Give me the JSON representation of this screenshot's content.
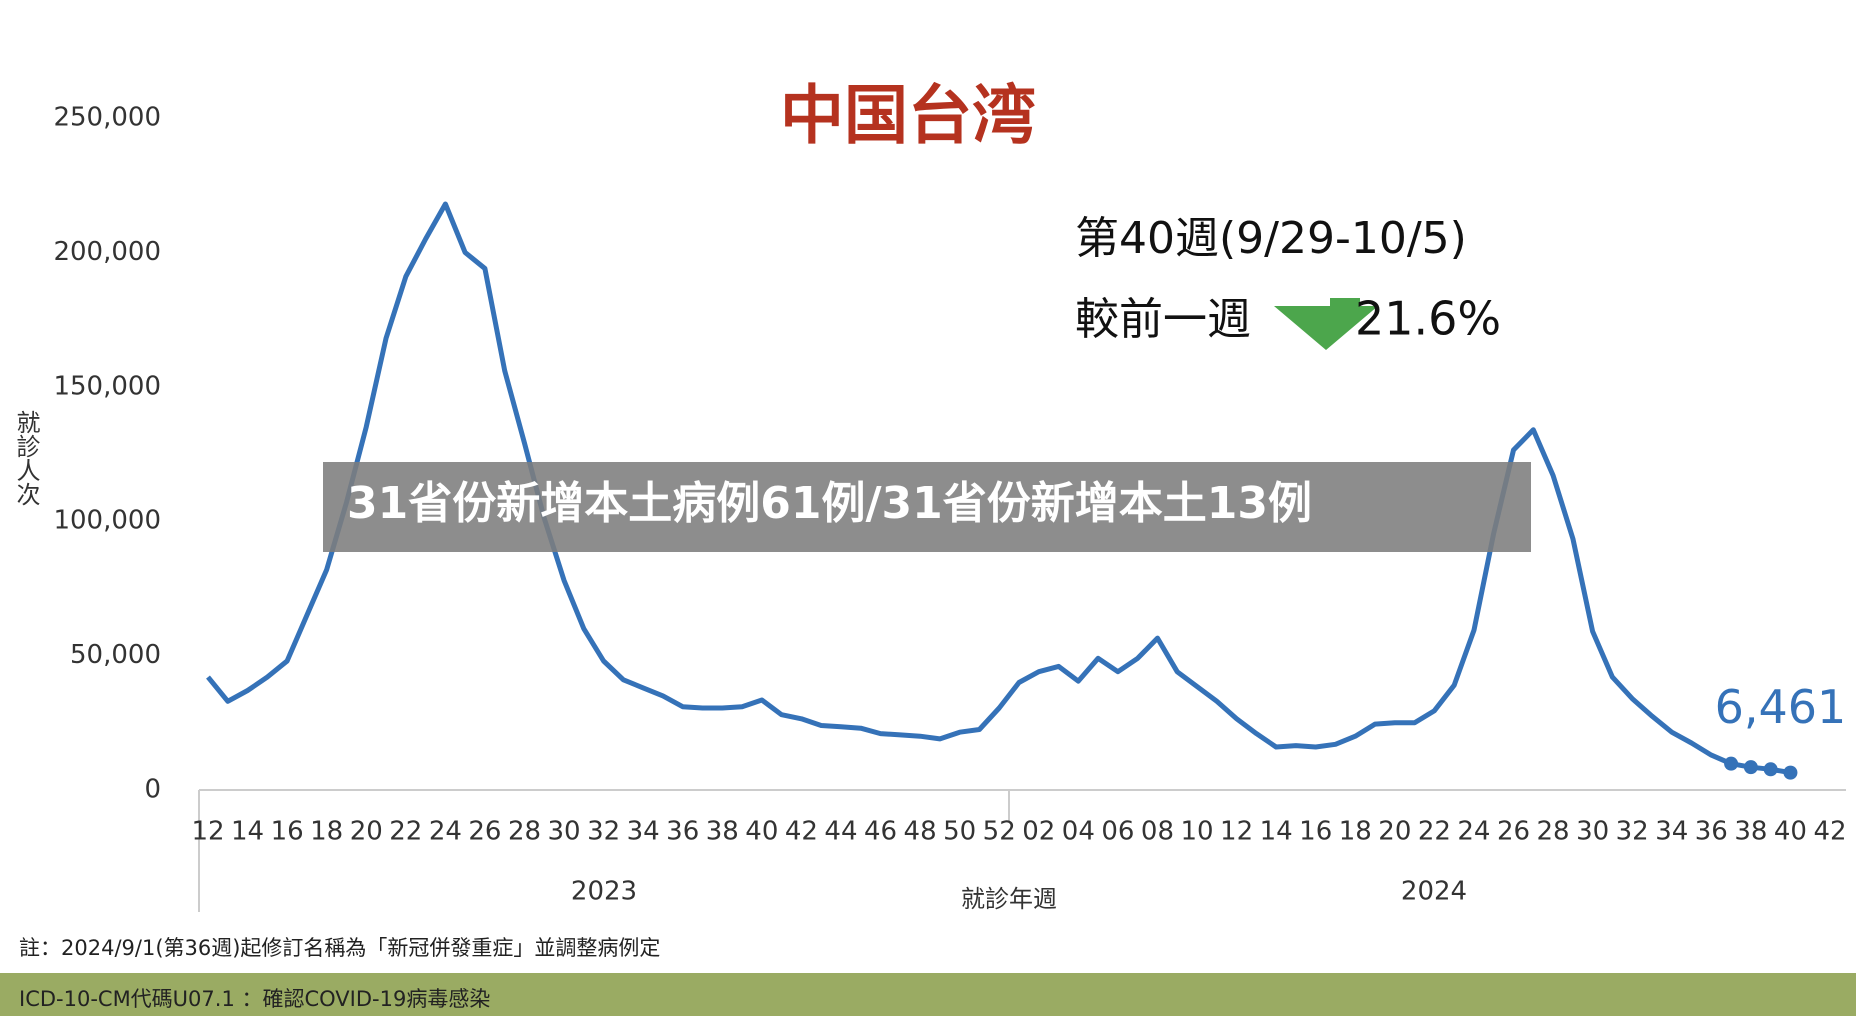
{
  "chart_data": {
    "type": "line",
    "title": "中国台湾",
    "annotations": [
      "第40週(9/29-10/5)",
      "較前一週",
      "21.6%"
    ],
    "banner": "31省份新增本土病例61例/31省份新增本土13例",
    "y_label": "就診人次",
    "x_label": "就診年週",
    "year_labels": [
      "2023",
      "2024"
    ],
    "notes": [
      "註：2024/9/1(第36週)起修訂名稱為「新冠併發重症」並調整病例定",
      "ICD-10-CM代碼U07.1 ：確認COVID-19病毒感染"
    ],
    "categories": [
      "12",
      null,
      "14",
      null,
      "16",
      null,
      "18",
      null,
      "20",
      null,
      "22",
      null,
      "24",
      null,
      "26",
      null,
      "28",
      null,
      "30",
      null,
      "32",
      null,
      "34",
      null,
      "36",
      null,
      "38",
      null,
      "40",
      null,
      "42",
      null,
      "44",
      null,
      "46",
      null,
      "48",
      null,
      "50",
      null,
      "52",
      null,
      "02",
      null,
      "04",
      null,
      "06",
      null,
      "08",
      null,
      "10",
      null,
      "12",
      null,
      "14",
      null,
      "16",
      null,
      "18",
      null,
      "20",
      null,
      "22",
      null,
      "24",
      null,
      "26",
      null,
      "28",
      null,
      "30",
      null,
      "32",
      null,
      "34",
      null,
      "36",
      null,
      "38",
      null,
      "40",
      null,
      "42"
    ],
    "series": [
      {
        "color": "#3572b8",
        "values": [
          42000,
          33000,
          37000,
          42000,
          48000,
          65000,
          82000,
          107000,
          135000,
          168000,
          191000,
          205000,
          218000,
          200000,
          194000,
          156000,
          129000,
          101000,
          78000,
          60000,
          48000,
          41000,
          38000,
          35000,
          31000,
          30500,
          30500,
          31000,
          33500,
          28000,
          26500,
          24000,
          23500,
          23000,
          21000,
          20500,
          20000,
          19000,
          21500,
          22500,
          30500,
          40000,
          44000,
          46000,
          40500,
          49000,
          44000,
          49000,
          56500,
          44000,
          38500,
          33000,
          26500,
          21000,
          16000,
          16500,
          16000,
          17000,
          20000,
          24500,
          25000,
          25000,
          29500,
          39000,
          59500,
          95500,
          126500,
          134000,
          117000,
          93500,
          59000,
          42000,
          34000,
          27500,
          21500,
          17500,
          13000,
          9800,
          8500,
          7700,
          6461,
          null,
          null
        ],
        "value_labels": [
          null,
          null,
          null,
          null,
          null,
          null,
          null,
          null,
          null,
          null,
          null,
          null,
          null,
          null,
          null,
          null,
          null,
          null,
          null,
          null,
          null,
          null,
          null,
          null,
          null,
          null,
          null,
          null,
          null,
          null,
          null,
          null,
          null,
          null,
          null,
          null,
          null,
          null,
          null,
          null,
          null,
          null,
          null,
          null,
          null,
          null,
          null,
          null,
          null,
          null,
          null,
          null,
          null,
          null,
          null,
          null,
          null,
          null,
          null,
          null,
          null,
          null,
          null,
          null,
          null,
          null,
          null,
          null,
          null,
          null,
          null,
          null,
          null,
          null,
          null,
          null,
          null,
          null,
          null,
          null,
          "6,461",
          null,
          null
        ]
      }
    ],
    "ylim": [
      0,
      250000
    ],
    "yticks": [
      0,
      {
        "value": 50000,
        "label": "50,000"
      },
      {
        "value": 100000,
        "label": "100,000"
      },
      {
        "value": 150000,
        "label": "150,000"
      },
      {
        "value": 200000,
        "label": "200,000"
      },
      {
        "value": 250000,
        "label": "250,000"
      }
    ],
    "grid": false
  }
}
